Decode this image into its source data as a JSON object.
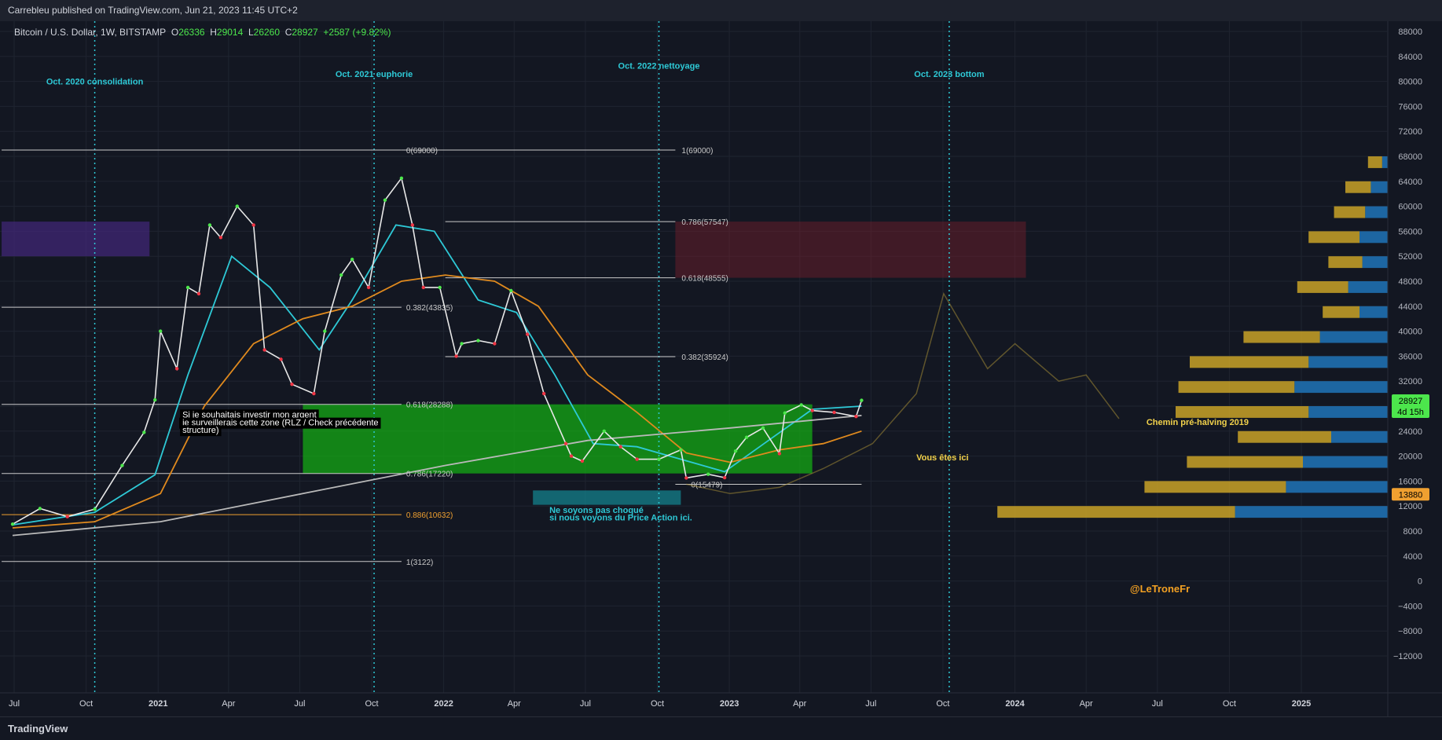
{
  "header": {
    "publisher": "Carrebleu published on TradingView.com, Jun 21, 2023 11:45 UTC+2"
  },
  "symbol_line": {
    "name": "Bitcoin / U.S. Dollar, 1W, BITSTAMP",
    "o_label": "O",
    "o": "26336",
    "h_label": "H",
    "h": "29014",
    "l_label": "L",
    "l": "26260",
    "c_label": "C",
    "c": "28927",
    "change": "+2587 (+9.82%)"
  },
  "footer": {
    "brand": "TradingView"
  },
  "chart_data": {
    "type": "line",
    "title": "Bitcoin / U.S. Dollar, 1W, BITSTAMP",
    "ylim": [
      -14000,
      92000
    ],
    "y_ticks": [
      "88000",
      "84000",
      "80000",
      "76000",
      "72000",
      "68000",
      "64000",
      "60000",
      "56000",
      "52000",
      "48000",
      "44000",
      "40000",
      "36000",
      "32000",
      "28000",
      "24000",
      "20000",
      "16000",
      "12000",
      "8000",
      "4000",
      "0",
      "−4000",
      "−8000",
      "−12000"
    ],
    "y_tick_values": [
      88000,
      84000,
      80000,
      76000,
      72000,
      68000,
      64000,
      60000,
      56000,
      52000,
      48000,
      44000,
      40000,
      36000,
      32000,
      28000,
      24000,
      20000,
      16000,
      12000,
      8000,
      4000,
      0,
      -4000,
      -8000,
      -12000
    ],
    "x_ticks": [
      {
        "label": "Jul",
        "date": "2020-07-01",
        "bold": false
      },
      {
        "label": "Oct",
        "date": "2020-10-01",
        "bold": false
      },
      {
        "label": "2021",
        "date": "2021-01-01",
        "bold": true
      },
      {
        "label": "Apr",
        "date": "2021-04-01",
        "bold": false
      },
      {
        "label": "Jul",
        "date": "2021-07-01",
        "bold": false
      },
      {
        "label": "Oct",
        "date": "2021-10-01",
        "bold": false
      },
      {
        "label": "2022",
        "date": "2022-01-01",
        "bold": true
      },
      {
        "label": "Apr",
        "date": "2022-04-01",
        "bold": false
      },
      {
        "label": "Jul",
        "date": "2022-07-01",
        "bold": false
      },
      {
        "label": "Oct",
        "date": "2022-10-01",
        "bold": false
      },
      {
        "label": "2023",
        "date": "2023-01-01",
        "bold": true
      },
      {
        "label": "Apr",
        "date": "2023-04-01",
        "bold": false
      },
      {
        "label": "Jul",
        "date": "2023-07-01",
        "bold": false
      },
      {
        "label": "Oct",
        "date": "2023-10-01",
        "bold": false
      },
      {
        "label": "2024",
        "date": "2024-01-01",
        "bold": true
      },
      {
        "label": "Apr",
        "date": "2024-04-01",
        "bold": false
      },
      {
        "label": "Jul",
        "date": "2024-07-01",
        "bold": false
      },
      {
        "label": "Oct",
        "date": "2024-10-01",
        "bold": false
      },
      {
        "label": "2025",
        "date": "2025-01-01",
        "bold": true
      }
    ],
    "price_series": {
      "name": "BTCUSD weekly close",
      "dates": [
        "2020-06-29",
        "2020-08-03",
        "2020-09-07",
        "2020-10-12",
        "2020-11-16",
        "2020-12-14",
        "2020-12-28",
        "2021-01-04",
        "2021-01-25",
        "2021-02-08",
        "2021-02-22",
        "2021-03-08",
        "2021-03-22",
        "2021-04-12",
        "2021-05-03",
        "2021-05-17",
        "2021-06-07",
        "2021-06-21",
        "2021-07-19",
        "2021-08-02",
        "2021-08-23",
        "2021-09-06",
        "2021-09-27",
        "2021-10-18",
        "2021-11-08",
        "2021-11-22",
        "2021-12-06",
        "2021-12-27",
        "2022-01-17",
        "2022-01-24",
        "2022-02-14",
        "2022-03-07",
        "2022-03-28",
        "2022-04-18",
        "2022-05-09",
        "2022-06-06",
        "2022-06-13",
        "2022-06-27",
        "2022-07-25",
        "2022-08-15",
        "2022-09-05",
        "2022-10-03",
        "2022-10-31",
        "2022-11-07",
        "2022-12-05",
        "2022-12-26",
        "2023-01-09",
        "2023-01-23",
        "2023-02-13",
        "2023-03-06",
        "2023-03-13",
        "2023-04-03",
        "2023-04-17",
        "2023-05-15",
        "2023-06-12",
        "2023-06-19"
      ],
      "values": [
        9100,
        11600,
        10300,
        11500,
        18500,
        23800,
        29000,
        40000,
        34000,
        47000,
        46000,
        57000,
        55000,
        60000,
        57000,
        37000,
        35500,
        31500,
        30000,
        40000,
        49000,
        51500,
        47000,
        61000,
        64500,
        57000,
        47000,
        47000,
        36000,
        38000,
        38500,
        38000,
        46500,
        39500,
        30000,
        22000,
        20000,
        19200,
        24000,
        21500,
        19500,
        19500,
        21000,
        16500,
        17100,
        16550,
        20800,
        23000,
        24500,
        20400,
        26900,
        28200,
        27300,
        27000,
        26336,
        28927
      ]
    },
    "ma_series": [
      {
        "color": "#2ec9d6",
        "dates": [
          "2020-06-29",
          "2020-10-12",
          "2020-12-28",
          "2021-02-08",
          "2021-04-05",
          "2021-05-24",
          "2021-07-26",
          "2021-09-06",
          "2021-11-01",
          "2021-12-20",
          "2022-02-14",
          "2022-04-04",
          "2022-05-23",
          "2022-07-11",
          "2022-09-05",
          "2022-10-31",
          "2022-12-26",
          "2023-02-20",
          "2023-04-17",
          "2023-06-19"
        ],
        "values": [
          9000,
          11000,
          17000,
          33000,
          52000,
          47000,
          37000,
          45000,
          57000,
          56000,
          45000,
          43000,
          33000,
          22000,
          21500,
          19500,
          17500,
          22500,
          27500,
          28000
        ]
      },
      {
        "color": "#e08a1e",
        "dates": [
          "2020-06-29",
          "2020-10-12",
          "2021-01-04",
          "2021-03-01",
          "2021-05-03",
          "2021-07-05",
          "2021-09-06",
          "2021-11-08",
          "2022-01-03",
          "2022-03-07",
          "2022-05-02",
          "2022-07-04",
          "2022-09-05",
          "2022-11-07",
          "2023-01-02",
          "2023-03-06",
          "2023-05-01",
          "2023-06-19"
        ],
        "values": [
          8500,
          9500,
          14000,
          28000,
          38000,
          42000,
          44000,
          48000,
          49000,
          48000,
          44000,
          33000,
          27000,
          20500,
          19000,
          21000,
          22000,
          24000
        ]
      },
      {
        "color": "#b9b9b9",
        "dates": [
          "2020-06-29",
          "2021-01-04",
          "2021-07-05",
          "2022-01-03",
          "2022-07-04",
          "2023-01-02",
          "2023-06-19"
        ],
        "values": [
          7300,
          9500,
          14000,
          18500,
          22500,
          24500,
          26500
        ]
      }
    ],
    "projection_series": {
      "name": "Chemin pré-halving 2019",
      "color": "#bfa13a",
      "dates": [
        "2022-11-07",
        "2023-01-02",
        "2023-03-06",
        "2023-05-01",
        "2023-07-03",
        "2023-08-28",
        "2023-10-02",
        "2023-11-27",
        "2024-01-01",
        "2024-02-26",
        "2024-04-01",
        "2024-05-13"
      ],
      "values": [
        15500,
        14000,
        15000,
        18000,
        22000,
        30000,
        46000,
        34000,
        38000,
        32000,
        33000,
        26000
      ]
    },
    "horizontal_levels": [
      {
        "label": "1(69000)",
        "value": 69000,
        "from": "2021-11-08",
        "to": "2022-10-24",
        "color": "#c9c9c9"
      },
      {
        "label": "0.786(57547)",
        "value": 57547,
        "from": "2022-01-03",
        "to": "2022-10-24",
        "color": "#c9c9c9"
      },
      {
        "label": "0.618(48555)",
        "value": 48555,
        "from": "2022-01-03",
        "to": "2022-10-24",
        "color": "#c9c9c9"
      },
      {
        "label": "0.382(35924)",
        "value": 35924,
        "from": "2022-01-03",
        "to": "2022-10-24",
        "color": "#c9c9c9"
      },
      {
        "label": "0(69000)",
        "value": 69000,
        "from": "2020-06-15",
        "to": "2021-11-08",
        "color": "#c9c9c9"
      },
      {
        "label": "0.382(43835)",
        "value": 43835,
        "from": "2020-06-15",
        "to": "2021-11-08",
        "color": "#c9c9c9"
      },
      {
        "label": "0.618(28288)",
        "value": 28288,
        "from": "2020-06-15",
        "to": "2021-11-08",
        "color": "#c9c9c9"
      },
      {
        "label": "0.786(17220)",
        "value": 17220,
        "from": "2020-06-15",
        "to": "2021-11-08",
        "color": "#c9c9c9"
      },
      {
        "label": "0.886(10632)",
        "value": 10632,
        "from": "2020-06-15",
        "to": "2021-11-08",
        "color": "#f0a030"
      },
      {
        "label": "1(3122)",
        "value": 3122,
        "from": "2020-06-15",
        "to": "2021-11-08",
        "color": "#c9c9c9"
      },
      {
        "label": "0(15479)",
        "value": 15479,
        "from": "2022-10-24",
        "to": "2023-06-19",
        "color": "#c9c9c9"
      }
    ],
    "zones": [
      {
        "from": "2022-10-24",
        "to": "2024-01-15",
        "top": 57547,
        "bottom": 48555,
        "color": "rgba(120,30,45,0.45)"
      },
      {
        "from": "2020-06-15",
        "to": "2020-12-21",
        "top": 57547,
        "bottom": 52000,
        "color": "rgba(70,40,130,0.65)"
      },
      {
        "from": "2021-07-05",
        "to": "2023-04-17",
        "top": 28288,
        "bottom": 17220,
        "color": "rgba(20,170,20,0.75)"
      },
      {
        "from": "2022-04-25",
        "to": "2022-10-31",
        "top": 14500,
        "bottom": 12200,
        "color": "rgba(20,130,140,0.75)"
      }
    ],
    "vertical_markers": [
      {
        "date": "2020-10-12",
        "label": "Oct. 2020 consolidation",
        "label_value": 79500
      },
      {
        "date": "2021-10-04",
        "label": "Oct. 2021 euphorie",
        "label_value": 80700
      },
      {
        "date": "2022-10-03",
        "label": "Oct. 2022 nettoyage",
        "label_value": 82000
      },
      {
        "date": "2023-10-09",
        "label": "Oct. 2023 bottom",
        "label_value": 80700
      }
    ],
    "annotations": [
      {
        "text": "Si je souhaitais investir mon argent",
        "date": "2021-02-01",
        "value": 26200,
        "color": "#ffffff",
        "bg": "#000000"
      },
      {
        "text": "je surveillerais cette zone (RLZ / Check précédente",
        "date": "2021-02-01",
        "value": 24900,
        "color": "#ffffff",
        "bg": "#000000"
      },
      {
        "text": "structure)",
        "date": "2021-02-01",
        "value": 23700,
        "color": "#ffffff",
        "bg": "#000000"
      },
      {
        "text": "Ne soyons pas choqué",
        "date": "2022-05-16",
        "value": 10900,
        "color": "#2ec9d6",
        "bg": ""
      },
      {
        "text": "si nous voyons du Price Action ici.",
        "date": "2022-05-16",
        "value": 9700,
        "color": "#2ec9d6",
        "bg": ""
      },
      {
        "text": "Vous êtes ici",
        "date": "2023-08-28",
        "value": 19300,
        "color": "#f2d24b",
        "bg": ""
      },
      {
        "text": "Chemin pré-halving 2019",
        "date": "2024-06-17",
        "value": 25000,
        "color": "#f2d24b",
        "bg": ""
      },
      {
        "text": "@LeTroneFr",
        "date": "2024-05-27",
        "value": -1800,
        "color": "#f2a022",
        "bg": ""
      }
    ],
    "price_badges": [
      {
        "line1": "28927",
        "line2": "4d 15h",
        "value": 28000,
        "bg": "#4ce64c",
        "color": "#000000"
      },
      {
        "line1": "13880",
        "line2": "",
        "value": 13880,
        "bg": "#f0a030",
        "color": "#000000"
      }
    ],
    "volume_profile": [
      {
        "price": 66000,
        "up": 0.05,
        "down": 0.02
      },
      {
        "price": 62000,
        "up": 0.09,
        "down": 0.06
      },
      {
        "price": 58000,
        "up": 0.11,
        "down": 0.08
      },
      {
        "price": 54000,
        "up": 0.18,
        "down": 0.1
      },
      {
        "price": 50000,
        "up": 0.12,
        "down": 0.09
      },
      {
        "price": 46000,
        "up": 0.18,
        "down": 0.14
      },
      {
        "price": 42000,
        "up": 0.13,
        "down": 0.1
      },
      {
        "price": 38000,
        "up": 0.27,
        "down": 0.24
      },
      {
        "price": 34000,
        "up": 0.42,
        "down": 0.28
      },
      {
        "price": 30000,
        "up": 0.41,
        "down": 0.33
      },
      {
        "price": 26000,
        "up": 0.47,
        "down": 0.28
      },
      {
        "price": 22000,
        "up": 0.33,
        "down": 0.2
      },
      {
        "price": 18000,
        "up": 0.41,
        "down": 0.3
      },
      {
        "price": 14000,
        "up": 0.5,
        "down": 0.36
      },
      {
        "price": 10000,
        "up": 0.84,
        "down": 0.54
      }
    ]
  }
}
